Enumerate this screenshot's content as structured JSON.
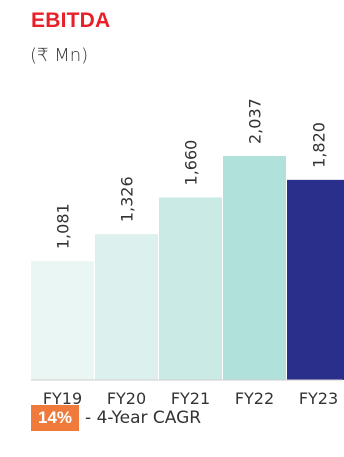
{
  "chart_data": {
    "type": "bar",
    "title": "EBITDA",
    "unit": "(₹ Mn)",
    "categories": [
      "FY19",
      "FY20",
      "FY21",
      "FY22",
      "FY23"
    ],
    "values": [
      1081,
      1326,
      1660,
      2037,
      1820
    ],
    "value_labels": [
      "1,081",
      "1,326",
      "1,660",
      "2,037",
      "1,820"
    ],
    "colors": [
      "#eaf6f4",
      "#dcf0ed",
      "#c9eae5",
      "#b0e1da",
      "#2b2f8c"
    ],
    "ylim": [
      0,
      2037
    ]
  },
  "footer": {
    "badge": "14%",
    "text": "- 4-Year CAGR",
    "badge_color": "#f07a3c"
  }
}
